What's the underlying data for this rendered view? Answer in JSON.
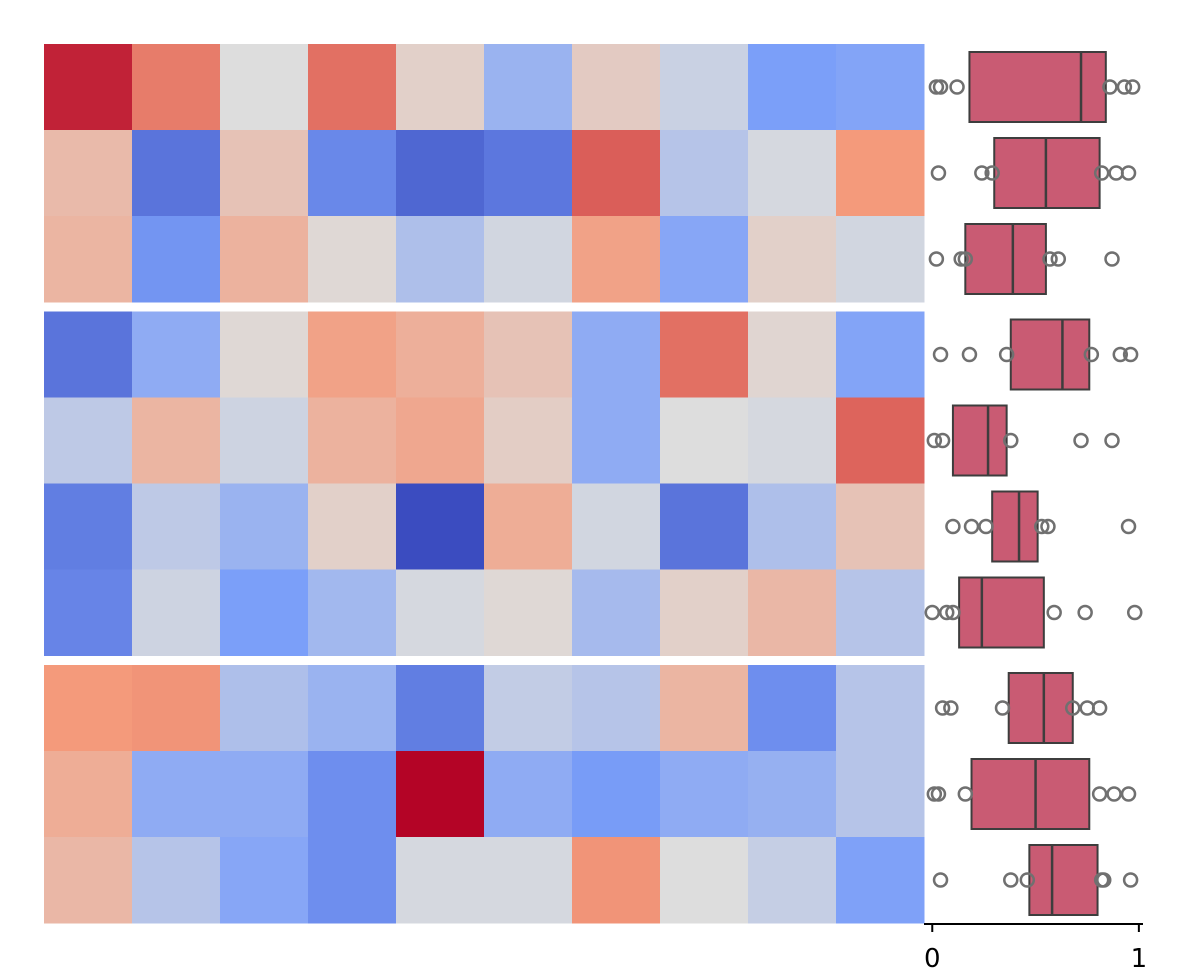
{
  "chart_data": [
    {
      "type": "heatmap",
      "cmap": "coolwarm",
      "vlim": [
        0,
        1
      ],
      "groups": [
        [
          [
            0.95,
            0.8,
            0.5,
            0.82,
            0.55,
            0.33,
            0.57,
            0.45,
            0.25,
            0.27
          ],
          [
            0.63,
            0.12,
            0.6,
            0.18,
            0.08,
            0.13,
            0.85,
            0.4,
            0.48,
            0.75
          ],
          [
            0.65,
            0.22,
            0.66,
            0.52,
            0.38,
            0.47,
            0.72,
            0.28,
            0.55,
            0.47
          ]
        ],
        [
          [
            0.12,
            0.3,
            0.52,
            0.72,
            0.67,
            0.6,
            0.3,
            0.82,
            0.53,
            0.27
          ],
          [
            0.42,
            0.65,
            0.46,
            0.66,
            0.7,
            0.56,
            0.3,
            0.5,
            0.48,
            0.84
          ],
          [
            0.15,
            0.42,
            0.33,
            0.55,
            0.0,
            0.68,
            0.47,
            0.12,
            0.38,
            0.6
          ],
          [
            0.17,
            0.46,
            0.25,
            0.35,
            0.48,
            0.52,
            0.36,
            0.55,
            0.64,
            0.4
          ]
        ],
        [
          [
            0.75,
            0.76,
            0.38,
            0.33,
            0.15,
            0.43,
            0.4,
            0.65,
            0.2,
            0.4
          ],
          [
            0.68,
            0.3,
            0.3,
            0.2,
            1.0,
            0.3,
            0.24,
            0.3,
            0.32,
            0.4
          ],
          [
            0.64,
            0.4,
            0.28,
            0.2,
            0.48,
            0.48,
            0.76,
            0.5,
            0.44,
            0.26
          ]
        ]
      ]
    },
    {
      "type": "box",
      "color": "#c95b73",
      "xlim": [
        -0.04,
        1.02
      ],
      "xticks": [
        0,
        1
      ],
      "groups": [
        [
          {
            "q1": 0.18,
            "median": 0.72,
            "q3": 0.84,
            "points": [
              0.02,
              0.04,
              0.12,
              0.86,
              0.93,
              0.97
            ]
          },
          {
            "q1": 0.3,
            "median": 0.55,
            "q3": 0.81,
            "points": [
              0.03,
              0.24,
              0.29,
              0.82,
              0.89,
              0.95
            ]
          },
          {
            "q1": 0.16,
            "median": 0.39,
            "q3": 0.55,
            "points": [
              0.02,
              0.14,
              0.16,
              0.57,
              0.61,
              0.87
            ]
          }
        ],
        [
          {
            "q1": 0.38,
            "median": 0.63,
            "q3": 0.76,
            "points": [
              0.04,
              0.18,
              0.36,
              0.77,
              0.91,
              0.96
            ]
          },
          {
            "q1": 0.1,
            "median": 0.27,
            "q3": 0.36,
            "points": [
              0.01,
              0.05,
              0.38,
              0.72,
              0.87
            ]
          },
          {
            "q1": 0.29,
            "median": 0.42,
            "q3": 0.51,
            "points": [
              0.1,
              0.19,
              0.26,
              0.53,
              0.56,
              0.95
            ]
          },
          {
            "q1": 0.13,
            "median": 0.24,
            "q3": 0.54,
            "points": [
              0.0,
              0.07,
              0.1,
              0.59,
              0.74,
              0.98
            ]
          }
        ],
        [
          {
            "q1": 0.37,
            "median": 0.54,
            "q3": 0.68,
            "points": [
              0.05,
              0.09,
              0.34,
              0.68,
              0.75,
              0.81
            ]
          },
          {
            "q1": 0.19,
            "median": 0.5,
            "q3": 0.76,
            "points": [
              0.01,
              0.03,
              0.16,
              0.81,
              0.88,
              0.95
            ]
          },
          {
            "q1": 0.47,
            "median": 0.58,
            "q3": 0.8,
            "points": [
              0.04,
              0.38,
              0.46,
              0.82,
              0.83,
              0.96
            ]
          }
        ]
      ]
    }
  ]
}
